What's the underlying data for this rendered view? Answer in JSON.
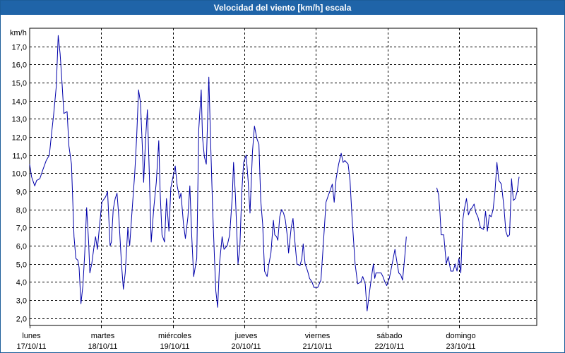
{
  "window": {
    "title": "Velocidad del viento [km/h] escala"
  },
  "chart_data": {
    "type": "line",
    "title": "Velocidad del viento [km/h] escala",
    "ylabel": "km/h",
    "xlabel": "",
    "ylim": [
      1.6,
      18.0
    ],
    "yticks": [
      2.0,
      3.0,
      4.0,
      5.0,
      6.0,
      7.0,
      8.0,
      9.0,
      10.0,
      11.0,
      12.0,
      13.0,
      14.0,
      15.0,
      16.0,
      17.0
    ],
    "ytick_labels": [
      "2,0",
      "3,0",
      "4,0",
      "5,0",
      "6,0",
      "7,0",
      "8,0",
      "9,0",
      "10,0",
      "11,0",
      "12,0",
      "13,0",
      "14,0",
      "15,0",
      "16,0",
      "17,0"
    ],
    "xlim": [
      0.0,
      7.2
    ],
    "grid": true,
    "line_color": "#0000aa",
    "days": [
      {
        "name": "lunes",
        "date": "17/10/11",
        "x": 0.0
      },
      {
        "name": "martes",
        "date": "18/10/11",
        "x": 1.0
      },
      {
        "name": "miércoles",
        "date": "19/10/11",
        "x": 2.0
      },
      {
        "name": "jueves",
        "date": "20/10/11",
        "x": 3.0
      },
      {
        "name": "viernes",
        "date": "21/10/11",
        "x": 4.0
      },
      {
        "name": "sábado",
        "date": "22/10/11",
        "x": 5.0
      },
      {
        "name": "domingo",
        "date": "23/10/11",
        "x": 6.0
      }
    ],
    "series": [
      {
        "segments": [
          [
            [
              0.0,
              10.5
            ],
            [
              0.027,
              9.8
            ],
            [
              0.071,
              9.3
            ],
            [
              0.098,
              9.6
            ],
            [
              0.142,
              9.7
            ],
            [
              0.186,
              10.2
            ],
            [
              0.231,
              10.7
            ],
            [
              0.275,
              11.0
            ],
            [
              0.301,
              12.0
            ],
            [
              0.337,
              13.3
            ],
            [
              0.372,
              14.8
            ],
            [
              0.399,
              17.6
            ],
            [
              0.425,
              16.6
            ],
            [
              0.452,
              15.0
            ],
            [
              0.478,
              13.3
            ],
            [
              0.523,
              13.4
            ],
            [
              0.549,
              11.5
            ],
            [
              0.584,
              10.5
            ],
            [
              0.602,
              8.5
            ],
            [
              0.62,
              6.5
            ],
            [
              0.646,
              5.3
            ],
            [
              0.673,
              5.2
            ],
            [
              0.691,
              4.8
            ],
            [
              0.717,
              2.8
            ],
            [
              0.744,
              3.8
            ],
            [
              0.77,
              5.6
            ],
            [
              0.797,
              8.1
            ],
            [
              0.824,
              6.2
            ],
            [
              0.841,
              4.5
            ],
            [
              0.868,
              5.0
            ],
            [
              0.894,
              5.8
            ],
            [
              0.921,
              6.5
            ],
            [
              0.947,
              5.8
            ],
            [
              0.974,
              7.0
            ],
            [
              1.009,
              8.4
            ],
            [
              1.062,
              8.7
            ],
            [
              1.089,
              9.0
            ],
            [
              1.124,
              6.0
            ],
            [
              1.142,
              6.2
            ],
            [
              1.168,
              8.0
            ],
            [
              1.195,
              8.6
            ],
            [
              1.221,
              8.9
            ],
            [
              1.248,
              7.5
            ],
            [
              1.283,
              5.0
            ],
            [
              1.31,
              3.6
            ],
            [
              1.336,
              4.5
            ],
            [
              1.372,
              7.0
            ],
            [
              1.398,
              6.0
            ],
            [
              1.425,
              7.6
            ],
            [
              1.469,
              10.0
            ],
            [
              1.496,
              12.0
            ],
            [
              1.522,
              14.6
            ],
            [
              1.549,
              13.9
            ],
            [
              1.575,
              11.5
            ],
            [
              1.593,
              9.5
            ],
            [
              1.619,
              11.8
            ],
            [
              1.646,
              13.5
            ],
            [
              1.672,
              10.0
            ],
            [
              1.699,
              6.2
            ],
            [
              1.735,
              8.1
            ],
            [
              1.77,
              9.5
            ],
            [
              1.805,
              11.8
            ],
            [
              1.823,
              9.0
            ],
            [
              1.85,
              6.6
            ],
            [
              1.885,
              6.2
            ],
            [
              1.912,
              8.6
            ],
            [
              1.947,
              6.8
            ],
            [
              1.973,
              9.2
            ],
            [
              2.009,
              9.9
            ],
            [
              2.035,
              10.4
            ],
            [
              2.062,
              9.3
            ],
            [
              2.097,
              8.6
            ],
            [
              2.115,
              8.9
            ],
            [
              2.15,
              7.2
            ],
            [
              2.177,
              6.4
            ],
            [
              2.212,
              7.6
            ],
            [
              2.239,
              9.3
            ],
            [
              2.265,
              6.6
            ],
            [
              2.292,
              4.3
            ],
            [
              2.336,
              5.3
            ],
            [
              2.363,
              12.4
            ],
            [
              2.398,
              14.6
            ],
            [
              2.416,
              12.0
            ],
            [
              2.442,
              10.9
            ],
            [
              2.469,
              10.5
            ],
            [
              2.504,
              15.3
            ],
            [
              2.531,
              11.5
            ],
            [
              2.558,
              8.0
            ],
            [
              2.584,
              5.2
            ],
            [
              2.602,
              3.5
            ],
            [
              2.628,
              2.6
            ],
            [
              2.655,
              5.1
            ],
            [
              2.69,
              6.5
            ],
            [
              2.717,
              5.8
            ],
            [
              2.761,
              6.0
            ],
            [
              2.796,
              6.6
            ],
            [
              2.832,
              8.7
            ],
            [
              2.85,
              10.6
            ],
            [
              2.876,
              8.8
            ],
            [
              2.912,
              5.0
            ],
            [
              2.938,
              5.9
            ],
            [
              2.965,
              9.0
            ],
            [
              2.991,
              10.6
            ],
            [
              3.027,
              11.0
            ],
            [
              3.053,
              9.6
            ],
            [
              3.08,
              7.8
            ],
            [
              3.115,
              11.2
            ],
            [
              3.142,
              12.6
            ],
            [
              3.177,
              11.9
            ],
            [
              3.204,
              11.6
            ],
            [
              3.23,
              8.5
            ],
            [
              3.257,
              7.2
            ],
            [
              3.283,
              4.6
            ],
            [
              3.319,
              4.3
            ],
            [
              3.345,
              5.0
            ],
            [
              3.372,
              5.6
            ],
            [
              3.407,
              7.4
            ],
            [
              3.425,
              6.6
            ],
            [
              3.451,
              6.5
            ],
            [
              3.469,
              6.3
            ],
            [
              3.496,
              7.6
            ],
            [
              3.522,
              8.0
            ],
            [
              3.549,
              7.8
            ],
            [
              3.575,
              7.4
            ],
            [
              3.602,
              6.5
            ],
            [
              3.619,
              5.6
            ],
            [
              3.655,
              7.0
            ],
            [
              3.681,
              7.5
            ],
            [
              3.708,
              6.2
            ],
            [
              3.735,
              5.0
            ],
            [
              3.779,
              4.9
            ],
            [
              3.805,
              5.3
            ],
            [
              3.823,
              6.1
            ],
            [
              3.85,
              5.0
            ],
            [
              3.885,
              4.6
            ],
            [
              3.912,
              4.2
            ],
            [
              3.947,
              4.0
            ],
            [
              3.973,
              3.7
            ],
            [
              4.027,
              3.7
            ],
            [
              4.071,
              4.1
            ],
            [
              4.097,
              5.6
            ],
            [
              4.142,
              8.4
            ],
            [
              4.177,
              8.8
            ],
            [
              4.204,
              9.1
            ],
            [
              4.23,
              9.4
            ],
            [
              4.257,
              8.4
            ],
            [
              4.283,
              9.7
            ],
            [
              4.319,
              10.5
            ],
            [
              4.354,
              11.1
            ],
            [
              4.381,
              10.6
            ],
            [
              4.407,
              10.7
            ],
            [
              4.451,
              10.5
            ],
            [
              4.478,
              9.6
            ],
            [
              4.505,
              7.6
            ],
            [
              4.549,
              5.0
            ],
            [
              4.584,
              3.9
            ],
            [
              4.628,
              4.0
            ],
            [
              4.655,
              4.3
            ],
            [
              4.69,
              3.9
            ],
            [
              4.717,
              2.4
            ],
            [
              4.752,
              3.5
            ],
            [
              4.779,
              4.3
            ],
            [
              4.805,
              5.0
            ],
            [
              4.823,
              4.2
            ],
            [
              4.841,
              4.5
            ],
            [
              4.876,
              4.5
            ],
            [
              4.912,
              4.5
            ],
            [
              4.938,
              4.3
            ],
            [
              4.965,
              4.0
            ],
            [
              4.991,
              3.8
            ],
            [
              5.027,
              4.2
            ],
            [
              5.062,
              4.9
            ],
            [
              5.106,
              5.8
            ],
            [
              5.133,
              5.1
            ],
            [
              5.159,
              4.5
            ],
            [
              5.186,
              4.4
            ],
            [
              5.212,
              4.1
            ],
            [
              5.248,
              5.6
            ],
            [
              5.265,
              6.5
            ]
          ],
          [
            [
              5.69,
              9.2
            ],
            [
              5.717,
              8.8
            ],
            [
              5.735,
              7.8
            ],
            [
              5.752,
              6.6
            ],
            [
              5.788,
              6.6
            ],
            [
              5.823,
              5.0
            ],
            [
              5.85,
              5.4
            ],
            [
              5.885,
              4.6
            ],
            [
              5.92,
              4.6
            ],
            [
              5.947,
              5.0
            ],
            [
              5.973,
              4.6
            ],
            [
              6.0,
              5.3
            ],
            [
              6.027,
              4.5
            ],
            [
              6.053,
              7.4
            ],
            [
              6.08,
              8.1
            ],
            [
              6.106,
              8.6
            ],
            [
              6.133,
              7.7
            ],
            [
              6.159,
              8.0
            ],
            [
              6.186,
              8.1
            ],
            [
              6.212,
              8.3
            ],
            [
              6.239,
              7.8
            ],
            [
              6.265,
              7.6
            ],
            [
              6.301,
              7.0
            ],
            [
              6.345,
              6.9
            ],
            [
              6.372,
              7.9
            ],
            [
              6.398,
              6.8
            ],
            [
              6.425,
              7.7
            ],
            [
              6.451,
              7.6
            ],
            [
              6.478,
              8.0
            ],
            [
              6.504,
              9.0
            ],
            [
              6.531,
              10.6
            ],
            [
              6.558,
              9.6
            ],
            [
              6.593,
              9.4
            ],
            [
              6.628,
              8.2
            ],
            [
              6.655,
              6.8
            ],
            [
              6.681,
              6.5
            ],
            [
              6.708,
              6.6
            ],
            [
              6.735,
              9.7
            ],
            [
              6.761,
              8.5
            ],
            [
              6.788,
              8.6
            ],
            [
              6.814,
              9.0
            ],
            [
              6.841,
              9.8
            ]
          ]
        ]
      }
    ]
  }
}
